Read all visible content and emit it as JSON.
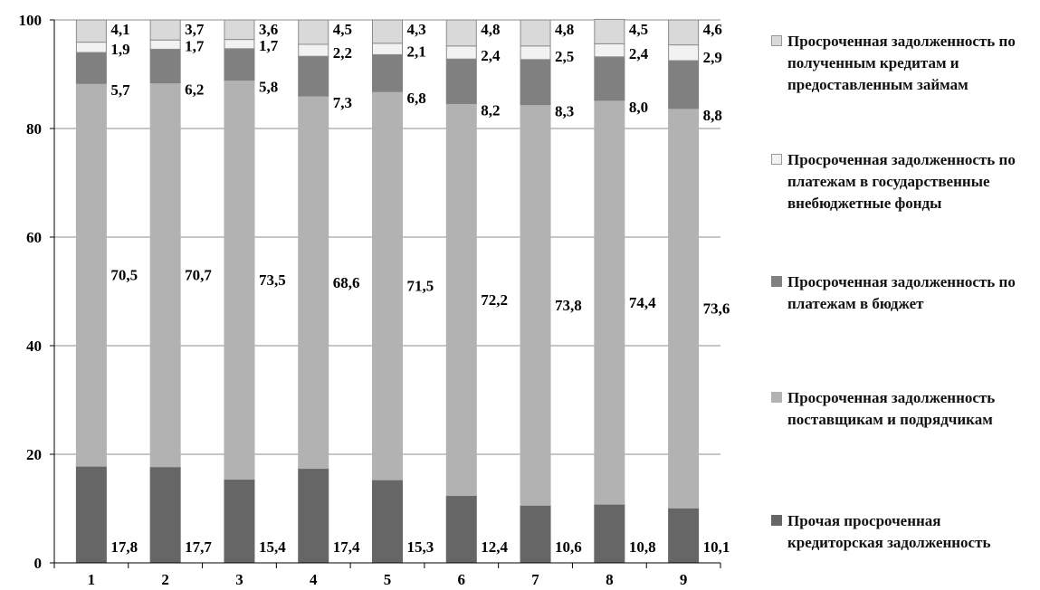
{
  "chart_data": {
    "type": "bar",
    "stacked": true,
    "categories": [
      "1",
      "2",
      "3",
      "4",
      "5",
      "6",
      "7",
      "8",
      "9"
    ],
    "ylim": [
      0,
      100
    ],
    "yticks": [
      "0",
      "20",
      "40",
      "60",
      "80",
      "100"
    ],
    "grid": true,
    "legend_position": "right",
    "series": [
      {
        "name": "Прочая просроченная кредиторская задолженность",
        "color": "#666666",
        "values": [
          17.8,
          17.7,
          15.4,
          17.4,
          15.3,
          12.4,
          10.6,
          10.8,
          10.1
        ],
        "labels": [
          "17,8",
          "17,7",
          "15,4",
          "17,4",
          "15,3",
          "12,4",
          "10,6",
          "10,8",
          "10,1"
        ]
      },
      {
        "name": "Просроченная задолженность поставщикам и подрядчикам",
        "color": "#b2b2b2",
        "values": [
          70.5,
          70.7,
          73.5,
          68.6,
          71.5,
          72.2,
          73.8,
          74.4,
          73.6
        ],
        "labels": [
          "70,5",
          "70,7",
          "73,5",
          "68,6",
          "71,5",
          "72,2",
          "73,8",
          "74,4",
          "73,6"
        ]
      },
      {
        "name": "Просроченная задолженность по платежам в бюджет",
        "color": "#808080",
        "values": [
          5.7,
          6.2,
          5.8,
          7.3,
          6.8,
          8.2,
          8.3,
          8.0,
          8.8
        ],
        "labels": [
          "5,7",
          "6,2",
          "5,8",
          "7,3",
          "6,8",
          "8,2",
          "8,3",
          "8,0",
          "8,8"
        ]
      },
      {
        "name": "Просроченная задолженность по платежам в государственные внебюджетные фонды",
        "color": "#f2f2f2",
        "values": [
          1.9,
          1.7,
          1.7,
          2.2,
          2.1,
          2.4,
          2.5,
          2.4,
          2.9
        ],
        "labels": [
          "1,9",
          "1,7",
          "1,7",
          "2,2",
          "2,1",
          "2,4",
          "2,5",
          "2,4",
          "2,9"
        ]
      },
      {
        "name": "Просроченная задолженность по полученным кредитам и предоставленным займам",
        "color": "#d9d9d9",
        "values": [
          4.1,
          3.7,
          3.6,
          4.5,
          4.3,
          4.8,
          4.8,
          4.5,
          4.6
        ],
        "labels": [
          "4,1",
          "3,7",
          "3,6",
          "4,5",
          "4,3",
          "4,8",
          "4,8",
          "4,5",
          "4,6"
        ]
      }
    ]
  },
  "legend": {
    "items": [
      {
        "label": "Просроченная задолженность по полученным кредитам и предоставленным займам",
        "color": "#d9d9d9"
      },
      {
        "label": "Просроченная задолженность по платежам в государственные внебюджетные фонды",
        "color": "#f2f2f2"
      },
      {
        "label": "Просроченная задолженность по платежам в бюджет",
        "color": "#808080"
      },
      {
        "label": "Просроченная задолженность поставщикам и подрядчикам",
        "color": "#b2b2b2"
      },
      {
        "label": "Прочая просроченная кредиторская задолженность",
        "color": "#666666"
      }
    ]
  }
}
